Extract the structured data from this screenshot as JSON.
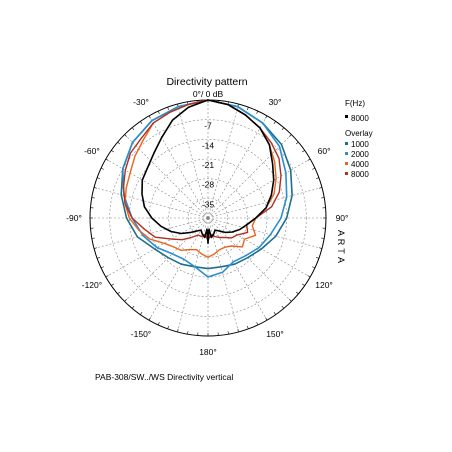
{
  "chart_data": {
    "type": "polar",
    "title": "Directivity pattern",
    "top_label": "0°/ 0 dB",
    "caption": "PAB-308/SW../WS  Directivity vertical",
    "side_text": [
      "A",
      "R",
      "T",
      "A"
    ],
    "radial_ticks": [
      -7,
      -14,
      -21,
      -28,
      -35
    ],
    "r_range": [
      -42,
      0
    ],
    "angle_labels": [
      {
        "deg": -30,
        "text": "-30°"
      },
      {
        "deg": 30,
        "text": "30°"
      },
      {
        "deg": -60,
        "text": "-60°"
      },
      {
        "deg": 60,
        "text": "60°"
      },
      {
        "deg": -90,
        "text": "-90°"
      },
      {
        "deg": 90,
        "text": "90°"
      },
      {
        "deg": -120,
        "text": "-120°"
      },
      {
        "deg": 120,
        "text": "120°"
      },
      {
        "deg": -150,
        "text": "-150°"
      },
      {
        "deg": 150,
        "text": "150°"
      },
      {
        "deg": 180,
        "text": "180°"
      }
    ],
    "legend": {
      "header": "F(Hz)",
      "main": [
        {
          "name": "8000",
          "color": "#000000"
        }
      ],
      "overlay_header": "Overlay",
      "overlay": [
        {
          "name": "1000",
          "color": "#1f6f8b"
        },
        {
          "name": "2000",
          "color": "#2a8fd0"
        },
        {
          "name": "4000",
          "color": "#e8641e"
        },
        {
          "name": "8000",
          "color": "#b03020"
        }
      ]
    },
    "series": [
      {
        "name": "1000",
        "color": "#1f6f8b",
        "width": 1.6,
        "points": [
          [
            0,
            0
          ],
          [
            15,
            -1
          ],
          [
            30,
            -3
          ],
          [
            45,
            -5
          ],
          [
            60,
            -8
          ],
          [
            75,
            -11
          ],
          [
            90,
            -14
          ],
          [
            105,
            -17
          ],
          [
            120,
            -20
          ],
          [
            135,
            -22
          ],
          [
            150,
            -23
          ],
          [
            165,
            -24
          ],
          [
            180,
            -24
          ],
          [
            -165,
            -24
          ],
          [
            -150,
            -23
          ],
          [
            -135,
            -22
          ],
          [
            -120,
            -20
          ],
          [
            -105,
            -16
          ],
          [
            -90,
            -13
          ],
          [
            -75,
            -10
          ],
          [
            -60,
            -7
          ],
          [
            -45,
            -4
          ],
          [
            -30,
            -2
          ],
          [
            -15,
            -1
          ]
        ]
      },
      {
        "name": "2000",
        "color": "#2a8fd0",
        "width": 1.6,
        "points": [
          [
            0,
            0
          ],
          [
            15,
            -1
          ],
          [
            30,
            -3
          ],
          [
            45,
            -6
          ],
          [
            60,
            -10
          ],
          [
            75,
            -13
          ],
          [
            90,
            -16
          ],
          [
            105,
            -19
          ],
          [
            120,
            -21
          ],
          [
            135,
            -23
          ],
          [
            150,
            -24
          ],
          [
            165,
            -22
          ],
          [
            180,
            -21
          ],
          [
            -165,
            -24
          ],
          [
            -150,
            -25
          ],
          [
            -135,
            -24
          ],
          [
            -120,
            -21
          ],
          [
            -105,
            -18
          ],
          [
            -90,
            -15
          ],
          [
            -75,
            -11
          ],
          [
            -60,
            -7
          ],
          [
            -45,
            -4
          ],
          [
            -30,
            -2
          ],
          [
            -15,
            -1
          ]
        ]
      },
      {
        "name": "4000",
        "color": "#e8641e",
        "width": 1.4,
        "points": [
          [
            0,
            0
          ],
          [
            10,
            -1
          ],
          [
            20,
            -3
          ],
          [
            30,
            -5
          ],
          [
            40,
            -8
          ],
          [
            50,
            -11
          ],
          [
            60,
            -14
          ],
          [
            70,
            -17
          ],
          [
            80,
            -21
          ],
          [
            90,
            -25
          ],
          [
            100,
            -26
          ],
          [
            110,
            -24
          ],
          [
            120,
            -27
          ],
          [
            130,
            -26
          ],
          [
            140,
            -29
          ],
          [
            150,
            -30
          ],
          [
            160,
            -30
          ],
          [
            170,
            -29
          ],
          [
            180,
            -28
          ],
          [
            -170,
            -29
          ],
          [
            -160,
            -30
          ],
          [
            -150,
            -29
          ],
          [
            -140,
            -27
          ],
          [
            -130,
            -26
          ],
          [
            -120,
            -24
          ],
          [
            -110,
            -20
          ],
          [
            -100,
            -17
          ],
          [
            -90,
            -14
          ],
          [
            -80,
            -12
          ],
          [
            -70,
            -11
          ],
          [
            -60,
            -10
          ],
          [
            -50,
            -8
          ],
          [
            -40,
            -6
          ],
          [
            -30,
            -3
          ],
          [
            -20,
            -2
          ],
          [
            -10,
            -1
          ]
        ]
      },
      {
        "name": "8000",
        "color": "#b03020",
        "width": 1.4,
        "points": [
          [
            0,
            0
          ],
          [
            10,
            -1
          ],
          [
            20,
            -3
          ],
          [
            30,
            -5
          ],
          [
            40,
            -7
          ],
          [
            50,
            -9
          ],
          [
            60,
            -12
          ],
          [
            70,
            -15
          ],
          [
            80,
            -19
          ],
          [
            90,
            -25
          ],
          [
            100,
            -28
          ],
          [
            110,
            -27
          ],
          [
            120,
            -30
          ],
          [
            130,
            -31
          ],
          [
            140,
            -33
          ],
          [
            150,
            -34
          ],
          [
            160,
            -35
          ],
          [
            170,
            -36
          ],
          [
            180,
            -34
          ],
          [
            -170,
            -36
          ],
          [
            -160,
            -35
          ],
          [
            -150,
            -35
          ],
          [
            -140,
            -33
          ],
          [
            -130,
            -30
          ],
          [
            -120,
            -27
          ],
          [
            -110,
            -22
          ],
          [
            -100,
            -19
          ],
          [
            -90,
            -15
          ],
          [
            -80,
            -12
          ],
          [
            -70,
            -10
          ],
          [
            -60,
            -8
          ],
          [
            -50,
            -6
          ],
          [
            -40,
            -5
          ],
          [
            -30,
            -3
          ],
          [
            -20,
            -2
          ],
          [
            -10,
            -1
          ]
        ]
      },
      {
        "name": "8000",
        "color": "#000000",
        "width": 1.6,
        "points": [
          [
            0,
            0
          ],
          [
            10,
            -1
          ],
          [
            20,
            -3
          ],
          [
            30,
            -5
          ],
          [
            40,
            -8
          ],
          [
            50,
            -12
          ],
          [
            60,
            -15
          ],
          [
            70,
            -18
          ],
          [
            80,
            -21
          ],
          [
            90,
            -25
          ],
          [
            100,
            -28
          ],
          [
            110,
            -30
          ],
          [
            120,
            -32
          ],
          [
            130,
            -34
          ],
          [
            140,
            -36
          ],
          [
            150,
            -37
          ],
          [
            160,
            -36
          ],
          [
            170,
            -35
          ],
          [
            175,
            -38
          ],
          [
            180,
            -33
          ],
          [
            -175,
            -38
          ],
          [
            -170,
            -35
          ],
          [
            -160,
            -36
          ],
          [
            -150,
            -37
          ],
          [
            -140,
            -36
          ],
          [
            -130,
            -34
          ],
          [
            -120,
            -31
          ],
          [
            -110,
            -28
          ],
          [
            -100,
            -25
          ],
          [
            -90,
            -22
          ],
          [
            -80,
            -19
          ],
          [
            -70,
            -17
          ],
          [
            -60,
            -15
          ],
          [
            -50,
            -14
          ],
          [
            -40,
            -12
          ],
          [
            -30,
            -9
          ],
          [
            -20,
            -5
          ],
          [
            -10,
            -2
          ]
        ]
      }
    ]
  }
}
